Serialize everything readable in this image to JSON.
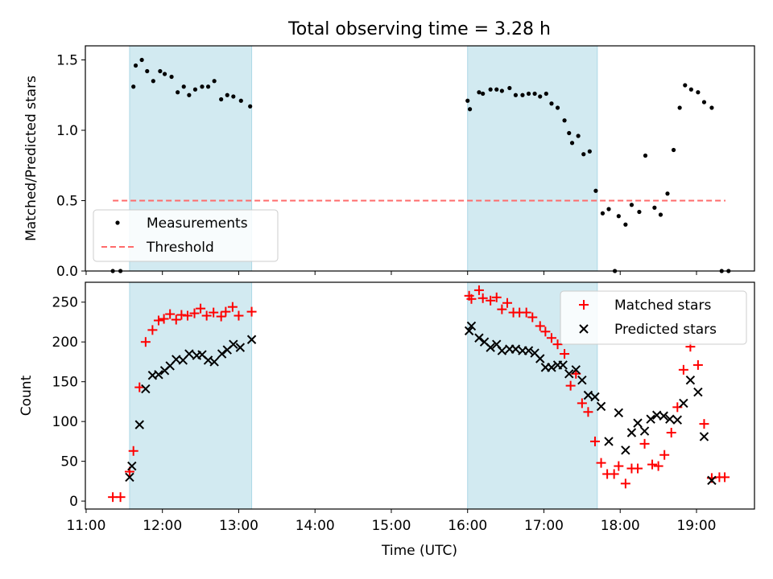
{
  "title": "Total observing time = 3.28 h",
  "colors": {
    "measurement": "#000000",
    "threshold": "#ff6b6b",
    "matched": "#ff0000",
    "predicted": "#000000",
    "shade": "#add8e6"
  },
  "chart_data": [
    {
      "type": "scatter",
      "ylabel": "Matched/Predicted stars",
      "ylim": [
        0,
        1.6
      ],
      "yticks": [
        0.0,
        0.5,
        1.0,
        1.5
      ],
      "ytick_labels": [
        "0.0",
        "0.5",
        "1.0",
        "1.5"
      ],
      "xlim": [
        10.99,
        19.76
      ],
      "shaded_intervals": [
        [
          11.57,
          13.17
        ],
        [
          16.0,
          17.7
        ]
      ],
      "legend_position": "lower-left",
      "threshold": {
        "name": "Threshold",
        "value": 0.5,
        "x_range": [
          11.35,
          19.38
        ]
      },
      "series": [
        {
          "name": "Measurements",
          "marker": "dot",
          "points": [
            [
              11.35,
              0.0
            ],
            [
              11.45,
              0.0
            ],
            [
              11.62,
              1.31
            ],
            [
              11.65,
              1.46
            ],
            [
              11.73,
              1.5
            ],
            [
              11.8,
              1.42
            ],
            [
              11.88,
              1.35
            ],
            [
              11.97,
              1.42
            ],
            [
              12.03,
              1.4
            ],
            [
              12.12,
              1.38
            ],
            [
              12.2,
              1.27
            ],
            [
              12.28,
              1.31
            ],
            [
              12.35,
              1.25
            ],
            [
              12.43,
              1.29
            ],
            [
              12.52,
              1.31
            ],
            [
              12.6,
              1.31
            ],
            [
              12.68,
              1.35
            ],
            [
              12.77,
              1.22
            ],
            [
              12.85,
              1.25
            ],
            [
              12.93,
              1.24
            ],
            [
              13.03,
              1.21
            ],
            [
              13.15,
              1.17
            ],
            [
              16.0,
              1.21
            ],
            [
              16.03,
              1.15
            ],
            [
              16.15,
              1.27
            ],
            [
              16.2,
              1.26
            ],
            [
              16.3,
              1.29
            ],
            [
              16.38,
              1.29
            ],
            [
              16.45,
              1.28
            ],
            [
              16.55,
              1.3
            ],
            [
              16.63,
              1.25
            ],
            [
              16.72,
              1.25
            ],
            [
              16.8,
              1.26
            ],
            [
              16.88,
              1.26
            ],
            [
              16.95,
              1.24
            ],
            [
              17.03,
              1.26
            ],
            [
              17.1,
              1.19
            ],
            [
              17.18,
              1.16
            ],
            [
              17.27,
              1.07
            ],
            [
              17.33,
              0.98
            ],
            [
              17.37,
              0.91
            ],
            [
              17.45,
              0.96
            ],
            [
              17.52,
              0.83
            ],
            [
              17.6,
              0.85
            ],
            [
              17.68,
              0.57
            ],
            [
              17.77,
              0.41
            ],
            [
              17.85,
              0.44
            ],
            [
              17.93,
              0.0
            ],
            [
              17.98,
              0.39
            ],
            [
              18.07,
              0.33
            ],
            [
              18.15,
              0.47
            ],
            [
              18.25,
              0.42
            ],
            [
              18.33,
              0.82
            ],
            [
              18.45,
              0.45
            ],
            [
              18.53,
              0.4
            ],
            [
              18.62,
              0.55
            ],
            [
              18.7,
              0.86
            ],
            [
              18.78,
              1.16
            ],
            [
              18.85,
              1.32
            ],
            [
              18.93,
              1.29
            ],
            [
              19.02,
              1.27
            ],
            [
              19.1,
              1.2
            ],
            [
              19.2,
              1.16
            ],
            [
              19.33,
              0.0
            ],
            [
              19.42,
              0.0
            ]
          ]
        }
      ]
    },
    {
      "type": "scatter",
      "ylabel": "Count",
      "xlabel": "Time (UTC)",
      "ylim": [
        -10,
        275
      ],
      "yticks": [
        0,
        50,
        100,
        150,
        200,
        250
      ],
      "ytick_labels": [
        "0",
        "50",
        "100",
        "150",
        "200",
        "250"
      ],
      "xlim": [
        10.99,
        19.76
      ],
      "xticks": [
        11,
        12,
        13,
        14,
        15,
        16,
        17,
        18,
        19
      ],
      "xtick_labels": [
        "11:00",
        "12:00",
        "13:00",
        "14:00",
        "15:00",
        "16:00",
        "17:00",
        "18:00",
        "19:00"
      ],
      "shaded_intervals": [
        [
          11.57,
          13.17
        ],
        [
          16.0,
          17.7
        ]
      ],
      "legend_position": "top-right",
      "series": [
        {
          "name": "Matched stars",
          "marker": "plus",
          "points": [
            [
              11.35,
              5
            ],
            [
              11.45,
              5
            ],
            [
              11.57,
              37
            ],
            [
              11.62,
              63
            ],
            [
              11.7,
              143
            ],
            [
              11.78,
              200
            ],
            [
              11.87,
              215
            ],
            [
              11.95,
              227
            ],
            [
              12.02,
              229
            ],
            [
              12.1,
              235
            ],
            [
              12.18,
              228
            ],
            [
              12.25,
              234
            ],
            [
              12.33,
              233
            ],
            [
              12.42,
              236
            ],
            [
              12.5,
              242
            ],
            [
              12.58,
              233
            ],
            [
              12.67,
              237
            ],
            [
              12.77,
              232
            ],
            [
              12.83,
              238
            ],
            [
              12.92,
              244
            ],
            [
              13.0,
              233
            ],
            [
              13.17,
              238
            ],
            [
              16.02,
              258
            ],
            [
              16.05,
              254
            ],
            [
              16.15,
              265
            ],
            [
              16.2,
              255
            ],
            [
              16.3,
              252
            ],
            [
              16.38,
              256
            ],
            [
              16.45,
              241
            ],
            [
              16.52,
              249
            ],
            [
              16.6,
              237
            ],
            [
              16.68,
              237
            ],
            [
              16.77,
              237
            ],
            [
              16.85,
              231
            ],
            [
              16.95,
              220
            ],
            [
              17.02,
              213
            ],
            [
              17.1,
              205
            ],
            [
              17.18,
              197
            ],
            [
              17.27,
              185
            ],
            [
              17.35,
              145
            ],
            [
              17.42,
              160
            ],
            [
              17.5,
              123
            ],
            [
              17.58,
              112
            ],
            [
              17.67,
              75
            ],
            [
              17.75,
              48
            ],
            [
              17.83,
              34
            ],
            [
              17.92,
              34
            ],
            [
              17.98,
              44
            ],
            [
              18.07,
              22
            ],
            [
              18.15,
              41
            ],
            [
              18.23,
              41
            ],
            [
              18.32,
              72
            ],
            [
              18.42,
              46
            ],
            [
              18.5,
              44
            ],
            [
              18.58,
              58
            ],
            [
              18.67,
              86
            ],
            [
              18.75,
              118
            ],
            [
              18.83,
              165
            ],
            [
              18.92,
              194
            ],
            [
              19.02,
              171
            ],
            [
              19.1,
              97
            ],
            [
              19.2,
              29
            ],
            [
              19.3,
              30
            ],
            [
              19.37,
              30
            ]
          ]
        },
        {
          "name": "Predicted stars",
          "marker": "x",
          "points": [
            [
              11.57,
              30
            ],
            [
              11.6,
              44
            ],
            [
              11.7,
              96
            ],
            [
              11.78,
              141
            ],
            [
              11.87,
              158
            ],
            [
              11.95,
              159
            ],
            [
              12.03,
              164
            ],
            [
              12.1,
              170
            ],
            [
              12.18,
              178
            ],
            [
              12.27,
              177
            ],
            [
              12.35,
              185
            ],
            [
              12.45,
              183
            ],
            [
              12.52,
              184
            ],
            [
              12.6,
              177
            ],
            [
              12.68,
              175
            ],
            [
              12.78,
              185
            ],
            [
              12.85,
              190
            ],
            [
              12.93,
              197
            ],
            [
              13.02,
              193
            ],
            [
              13.17,
              203
            ],
            [
              16.02,
              214
            ],
            [
              16.05,
              220
            ],
            [
              16.15,
              205
            ],
            [
              16.22,
              200
            ],
            [
              16.3,
              193
            ],
            [
              16.38,
              197
            ],
            [
              16.45,
              189
            ],
            [
              16.55,
              191
            ],
            [
              16.63,
              191
            ],
            [
              16.72,
              189
            ],
            [
              16.8,
              189
            ],
            [
              16.88,
              186
            ],
            [
              16.95,
              179
            ],
            [
              17.02,
              168
            ],
            [
              17.1,
              168
            ],
            [
              17.18,
              171
            ],
            [
              17.25,
              171
            ],
            [
              17.33,
              160
            ],
            [
              17.42,
              165
            ],
            [
              17.5,
              152
            ],
            [
              17.58,
              133
            ],
            [
              17.67,
              131
            ],
            [
              17.75,
              119
            ],
            [
              17.85,
              75
            ],
            [
              17.98,
              111
            ],
            [
              18.07,
              64
            ],
            [
              18.15,
              86
            ],
            [
              18.23,
              98
            ],
            [
              18.32,
              88
            ],
            [
              18.4,
              103
            ],
            [
              18.48,
              108
            ],
            [
              18.57,
              107
            ],
            [
              18.65,
              103
            ],
            [
              18.75,
              102
            ],
            [
              18.83,
              123
            ],
            [
              18.92,
              152
            ],
            [
              19.02,
              137
            ],
            [
              19.1,
              81
            ],
            [
              19.2,
              26
            ]
          ]
        }
      ]
    }
  ]
}
